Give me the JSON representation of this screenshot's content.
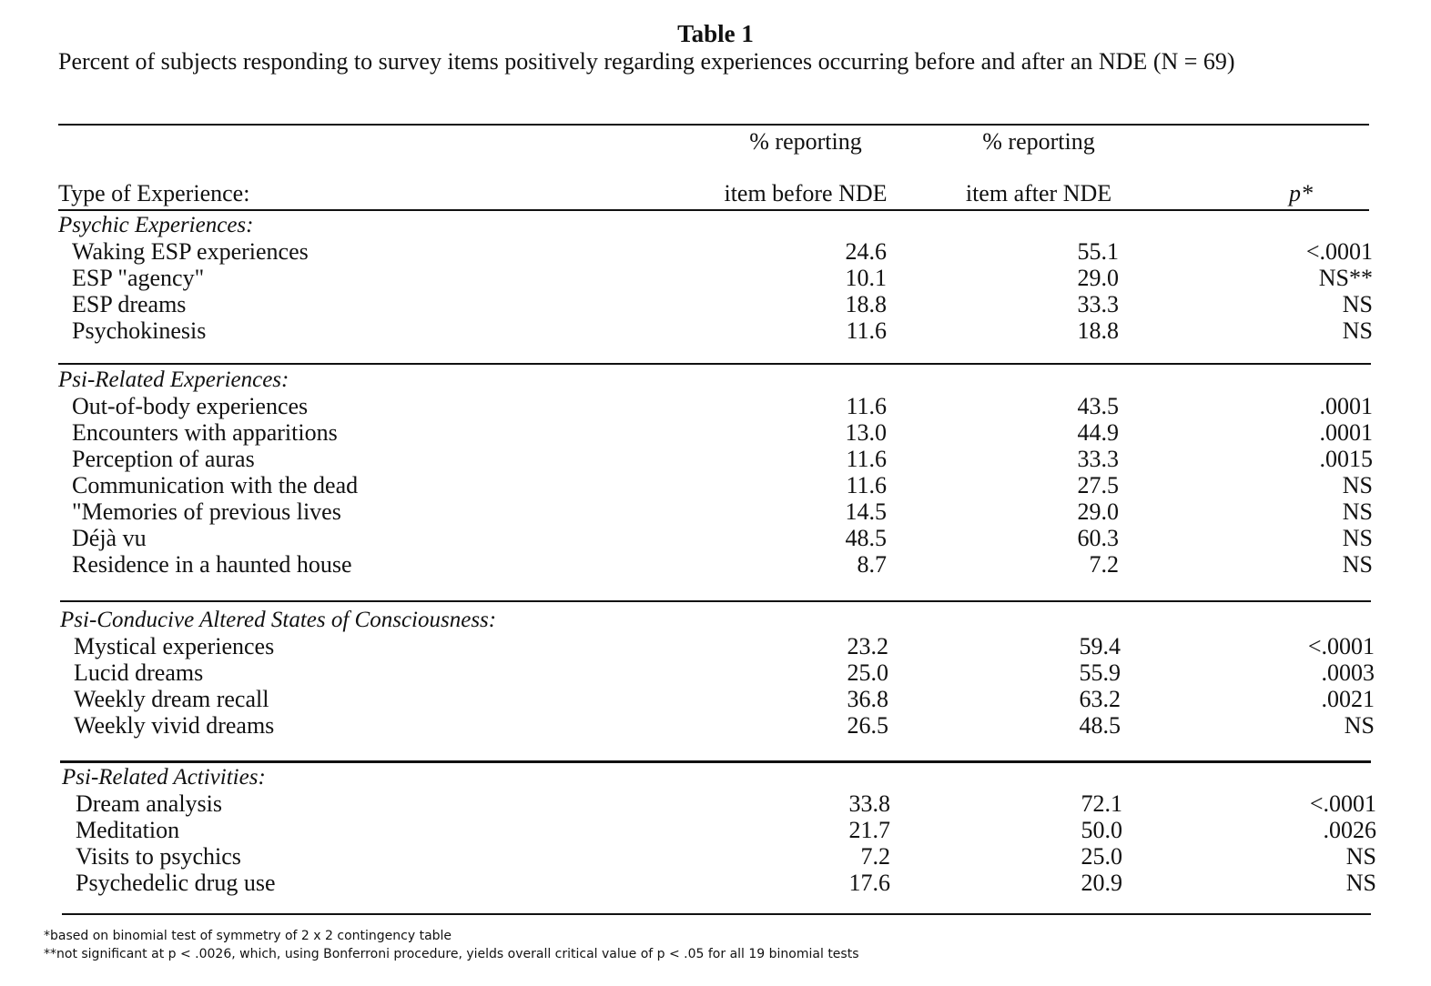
{
  "title": "Table 1",
  "caption": "Percent of subjects responding to survey items positively regarding experiences occurring before and after an NDE (N = 69)",
  "headers": {
    "col1": "Type of Experience:",
    "col2_top": "% reporting",
    "col2_bottom": "item before NDE",
    "col3_top": "% reporting",
    "col3_bottom": "item after NDE",
    "col4": "p*"
  },
  "sections": [
    {
      "title": "Psychic Experiences:",
      "rows": [
        {
          "label": "Waking ESP experiences",
          "before": "24.6",
          "after": "55.1",
          "p": "<.0001"
        },
        {
          "label": "ESP \"agency\"",
          "before": "10.1",
          "after": "29.0",
          "p": "NS**"
        },
        {
          "label": "ESP dreams",
          "before": "18.8",
          "after": "33.3",
          "p": "NS"
        },
        {
          "label": "Psychokinesis",
          "before": "11.6",
          "after": "18.8",
          "p": "NS"
        }
      ]
    },
    {
      "title": "Psi-Related Experiences:",
      "rows": [
        {
          "label": "Out-of-body experiences",
          "before": "11.6",
          "after": "43.5",
          "p": ".0001"
        },
        {
          "label": "Encounters with apparitions",
          "before": "13.0",
          "after": "44.9",
          "p": ".0001"
        },
        {
          "label": "Perception of auras",
          "before": "11.6",
          "after": "33.3",
          "p": ".0015"
        },
        {
          "label": "Communication with the dead",
          "before": "11.6",
          "after": "27.5",
          "p": "NS"
        },
        {
          "label": "\"Memories of previous lives",
          "before": "14.5",
          "after": "29.0",
          "p": "NS"
        },
        {
          "label": "Déjà vu",
          "before": "48.5",
          "after": "60.3",
          "p": "NS"
        },
        {
          "label": "Residence in a haunted house",
          "before": "8.7",
          "after": "7.2",
          "p": "NS"
        }
      ]
    },
    {
      "title": "Psi-Conducive Altered States of Consciousness:",
      "rows": [
        {
          "label": "Mystical experiences",
          "before": "23.2",
          "after": "59.4",
          "p": "<.0001"
        },
        {
          "label": "Lucid dreams",
          "before": "25.0",
          "after": "55.9",
          "p": ".0003"
        },
        {
          "label": "Weekly dream recall",
          "before": "36.8",
          "after": "63.2",
          "p": ".0021"
        },
        {
          "label": "Weekly vivid dreams",
          "before": "26.5",
          "after": "48.5",
          "p": "NS"
        }
      ]
    },
    {
      "title": "Psi-Related Activities:",
      "rows": [
        {
          "label": "Dream analysis",
          "before": "33.8",
          "after": "72.1",
          "p": "<.0001"
        },
        {
          "label": "Meditation",
          "before": "21.7",
          "after": "50.0",
          "p": ".0026"
        },
        {
          "label": "Visits to psychics",
          "before": "7.2",
          "after": "25.0",
          "p": "NS"
        },
        {
          "label": "Psychedelic drug use",
          "before": "17.6",
          "after": "20.9",
          "p": "NS"
        }
      ]
    }
  ],
  "footnotes": [
    "*based on binomial test of symmetry of 2 x 2 contingency table",
    "**not significant at p < .0026, which, using Bonferroni procedure, yields overall critical value of p < .05 for all 19 binomial tests"
  ]
}
